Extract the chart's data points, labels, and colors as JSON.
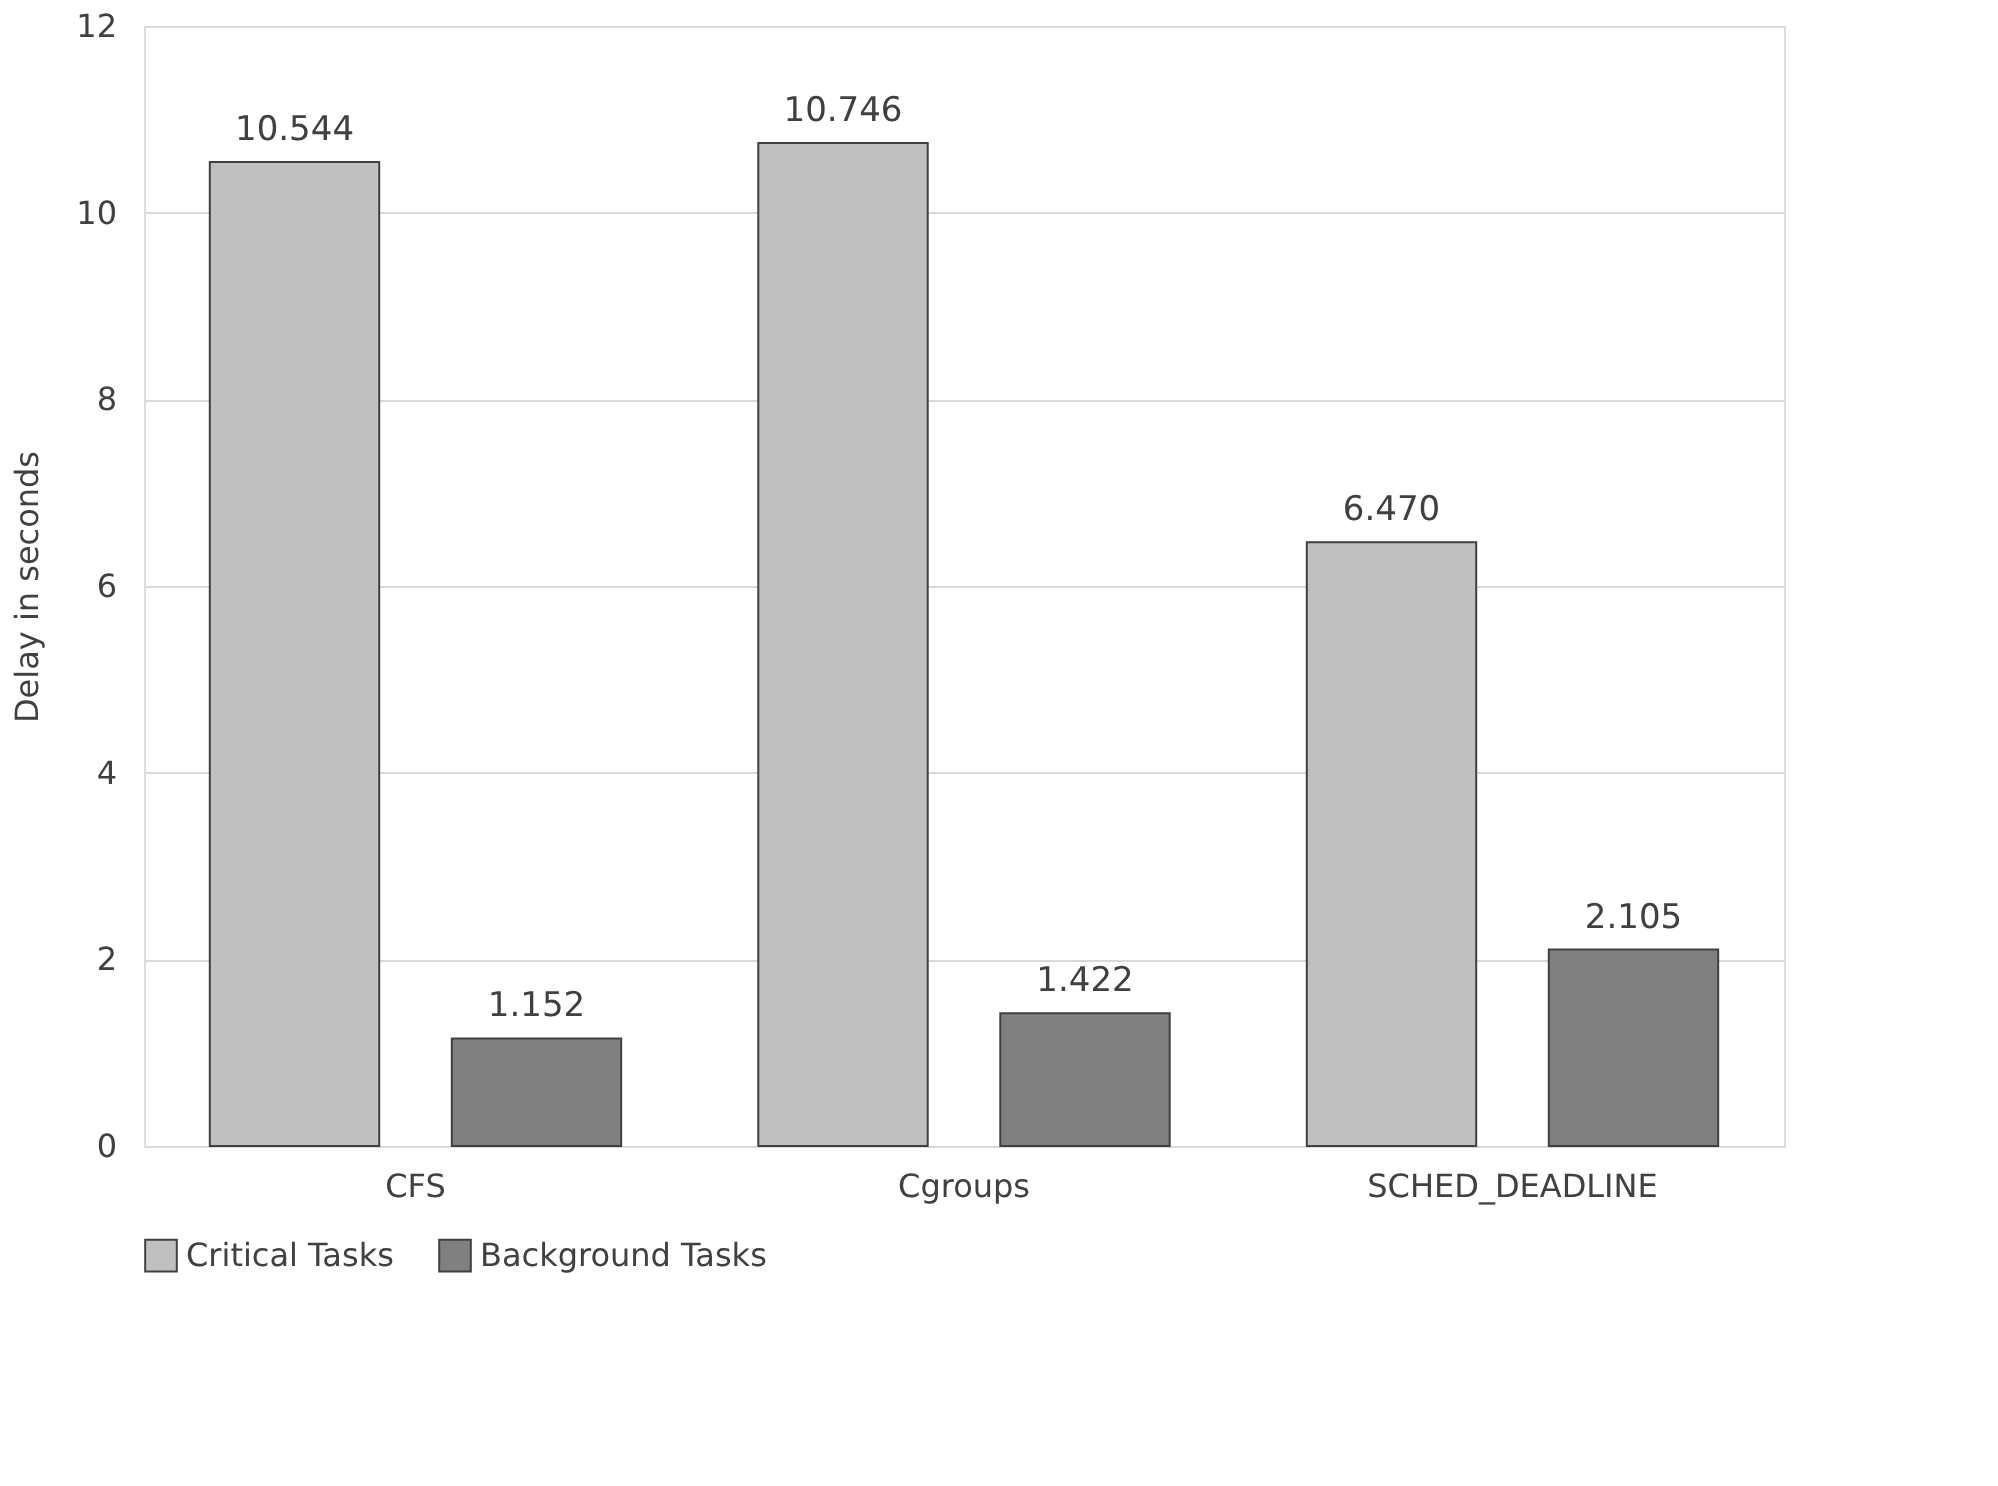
{
  "chart_data": {
    "type": "bar",
    "ylabel": "Delay in seconds",
    "categories": [
      "CFS",
      "Cgroups",
      "SCHED_DEADLINE"
    ],
    "series": [
      {
        "name": "Critical Tasks",
        "color": "#c0c0c0",
        "values": [
          10.544,
          10.746,
          6.47
        ],
        "value_labels": [
          "10.544",
          "10.746",
          "6.470"
        ]
      },
      {
        "name": "Background Tasks",
        "color": "#808080",
        "values": [
          1.152,
          1.422,
          2.105
        ],
        "value_labels": [
          "1.152",
          "1.422",
          "2.105"
        ]
      }
    ],
    "ylim": [
      0,
      12
    ],
    "yticks": [
      0,
      2,
      4,
      6,
      8,
      10,
      12
    ],
    "grid": "y",
    "legend": "bottom"
  }
}
